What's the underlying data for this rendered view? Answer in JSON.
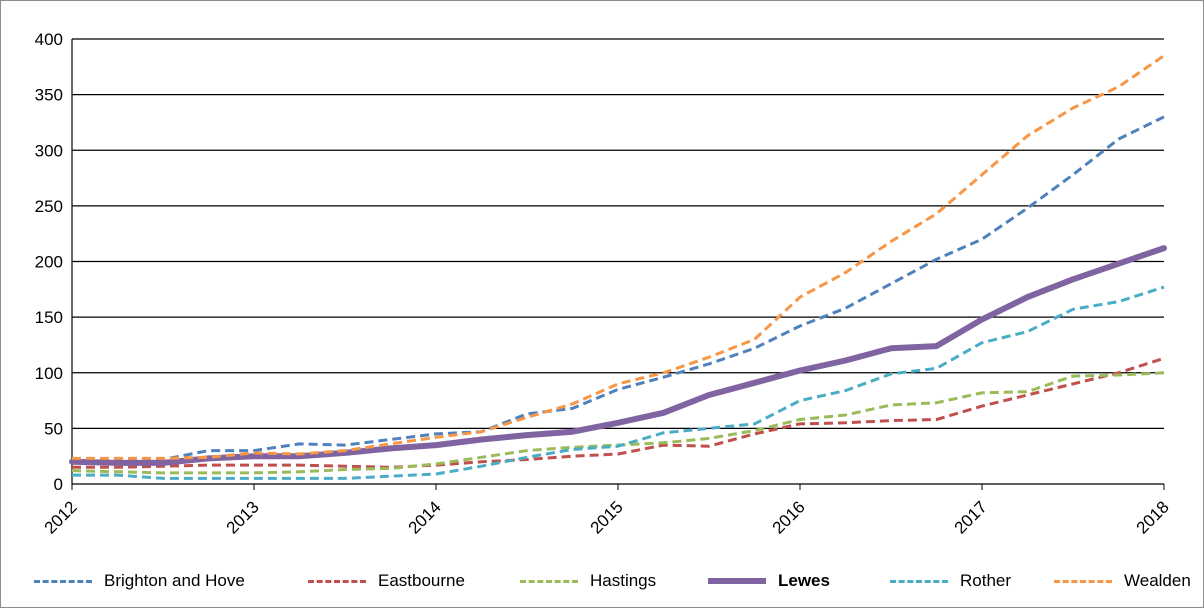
{
  "chart_data": {
    "type": "line",
    "ylim": [
      0,
      400
    ],
    "yticks": [
      0,
      50,
      100,
      150,
      200,
      250,
      300,
      350,
      400
    ],
    "xlim": [
      2012,
      2018
    ],
    "xticks": [
      "2012",
      "2013",
      "2014",
      "2015",
      "2016",
      "2017",
      "2018"
    ],
    "grid": "horizontal",
    "legend_position": "bottom",
    "x": [
      2012.0,
      2012.25,
      2012.5,
      2012.75,
      2013.0,
      2013.25,
      2013.5,
      2013.75,
      2014.0,
      2014.25,
      2014.5,
      2014.75,
      2015.0,
      2015.25,
      2015.5,
      2015.75,
      2016.0,
      2016.25,
      2016.5,
      2016.75,
      2017.0,
      2017.25,
      2017.5,
      2017.75,
      2018.0
    ],
    "series": [
      {
        "name": "Brighton and Hove",
        "color": "#4f81bd",
        "style": "dashed",
        "bold": false,
        "values": [
          22,
          22,
          22,
          30,
          30,
          36,
          35,
          40,
          45,
          47,
          63,
          68,
          85,
          96,
          108,
          122,
          142,
          158,
          180,
          202,
          220,
          248,
          278,
          310,
          330
        ]
      },
      {
        "name": "Eastbourne",
        "color": "#c0504d",
        "style": "dashed",
        "bold": false,
        "values": [
          15,
          15,
          16,
          17,
          17,
          17,
          16,
          15,
          17,
          20,
          22,
          25,
          27,
          35,
          34,
          45,
          54,
          55,
          57,
          58,
          70,
          80,
          90,
          100,
          113
        ]
      },
      {
        "name": "Hastings",
        "color": "#9bbb59",
        "style": "dashed",
        "bold": false,
        "values": [
          12,
          11,
          10,
          10,
          10,
          11,
          13,
          14,
          18,
          24,
          30,
          33,
          35,
          37,
          41,
          48,
          58,
          62,
          71,
          73,
          82,
          83,
          97,
          98,
          100
        ]
      },
      {
        "name": "Lewes",
        "color": "#8064a2",
        "style": "solid",
        "bold": true,
        "values": [
          20,
          19,
          19,
          23,
          25,
          25,
          28,
          32,
          35,
          40,
          44,
          47,
          55,
          64,
          80,
          91,
          102,
          111,
          122,
          124,
          148,
          168,
          184,
          198,
          212
        ]
      },
      {
        "name": "Rother",
        "color": "#4bacc6",
        "style": "dashed",
        "bold": false,
        "values": [
          8,
          8,
          5,
          5,
          5,
          5,
          5,
          7,
          9,
          16,
          24,
          31,
          34,
          46,
          50,
          54,
          75,
          84,
          99,
          104,
          127,
          137,
          157,
          164,
          177
        ]
      },
      {
        "name": "Wealden",
        "color": "#f79646",
        "style": "dashed",
        "bold": false,
        "values": [
          23,
          23,
          23,
          24,
          28,
          27,
          30,
          36,
          42,
          47,
          60,
          72,
          90,
          100,
          114,
          130,
          168,
          190,
          218,
          243,
          278,
          313,
          338,
          357,
          385
        ]
      }
    ]
  }
}
